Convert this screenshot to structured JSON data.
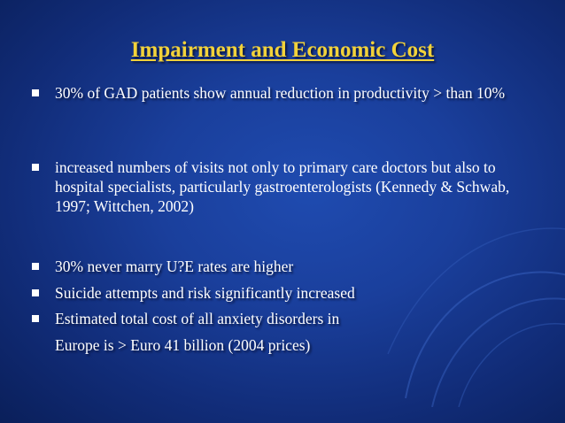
{
  "slide": {
    "title": "Impairment and Economic Cost",
    "bullets": [
      "30% of GAD patients show annual reduction in productivity > than 10%",
      "increased numbers of visits not only to primary care doctors but also to hospital specialists, particularly gastroenterologists (Kennedy & Schwab, 1997; Wittchen, 2002)",
      "30% never marry U?E rates are higher",
      "Suicide attempts and risk significantly increased",
      "Estimated total cost of all anxiety disorders in"
    ],
    "continuation": "Europe is > Euro 41 billion (2004 prices)"
  },
  "colors": {
    "background": "#1a3f9c",
    "title": "#f2d23a",
    "text": "#ffffff"
  }
}
